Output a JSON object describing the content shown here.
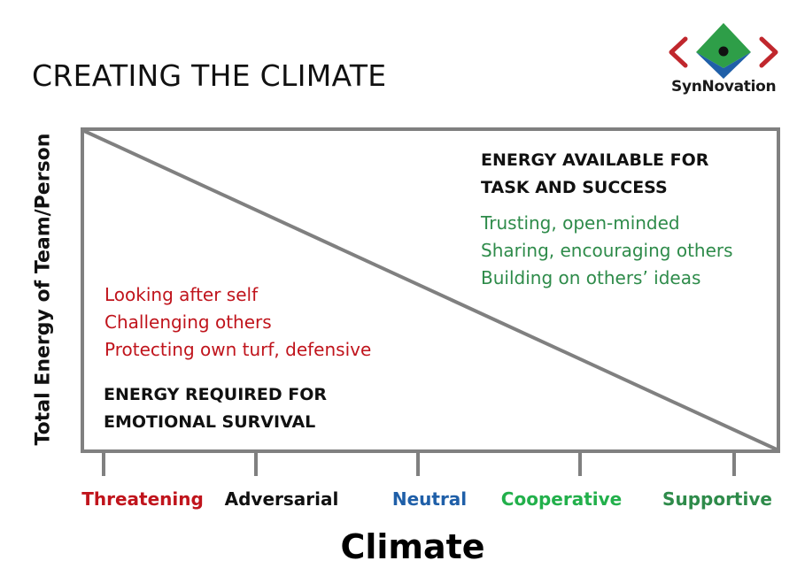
{
  "title": "CREATING THE CLIMATE",
  "logo": {
    "text": "SynNovation",
    "icon": "synnovation-logo-icon",
    "colors": {
      "red": "#c0272d",
      "green": "#2e9e48",
      "blue": "#1f5fa8",
      "dark": "#111111"
    }
  },
  "y_axis_label": "Total Energy of Team/Person",
  "x_axis_label": "Climate",
  "top_region": {
    "heading": [
      "ENERGY AVAILABLE FOR",
      "TASK AND SUCCESS"
    ],
    "items": [
      "Trusting, open-minded",
      "Sharing, encouraging others",
      "Building on others’ ideas"
    ],
    "color": "#2e8b4a"
  },
  "bottom_region": {
    "heading": [
      "ENERGY REQUIRED FOR",
      "EMOTIONAL SURVIVAL"
    ],
    "items": [
      "Looking after self",
      "Challenging others",
      "Protecting own turf, defensive"
    ],
    "color": "#c0141c"
  },
  "climate_scale": [
    {
      "label": "Threatening",
      "color": "#c0141c"
    },
    {
      "label": "Adversarial",
      "color": "#111111"
    },
    {
      "label": "Neutral",
      "color": "#1f5fa8"
    },
    {
      "label": "Cooperative",
      "color": "#22b04b"
    },
    {
      "label": "Supportive",
      "color": "#2e8b4a"
    }
  ],
  "frame_color": "#808080"
}
